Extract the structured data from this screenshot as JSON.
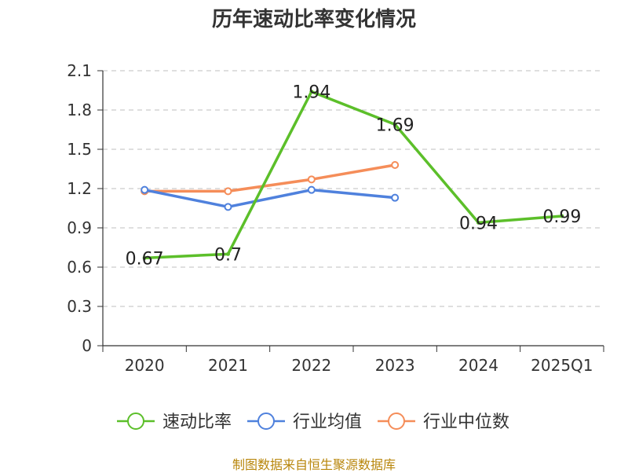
{
  "title": "历年速动比率变化情况",
  "source": "制图数据来自恒生聚源数据库",
  "chart_data": {
    "type": "line",
    "title": "历年速动比率变化情况",
    "categories": [
      "2020",
      "2021",
      "2022",
      "2023",
      "2024",
      "2025Q1"
    ],
    "ylim": [
      0,
      2.1
    ],
    "yticks": [
      0,
      0.3,
      0.6,
      0.9,
      1.2,
      1.5,
      1.8,
      2.1
    ],
    "ytick_labels": [
      "0",
      "0.3",
      "0.6",
      "0.9",
      "1.2",
      "1.5",
      "1.8",
      "2.1"
    ],
    "grid": true,
    "legend_position": "bottom",
    "series": [
      {
        "name": "速动比率",
        "color": "#5cbf2a",
        "values": [
          0.67,
          0.7,
          1.94,
          1.69,
          0.94,
          0.99
        ],
        "labels": [
          "0.67",
          "0.7",
          "1.94",
          "1.69",
          "0.94",
          "0.99"
        ],
        "show_labels": true
      },
      {
        "name": "行业均值",
        "color": "#4f81dd",
        "values": [
          1.19,
          1.06,
          1.19,
          1.13,
          null,
          null
        ],
        "show_labels": false
      },
      {
        "name": "行业中位数",
        "color": "#f58d59",
        "values": [
          1.18,
          1.18,
          1.27,
          1.38,
          null,
          null
        ],
        "show_labels": false
      }
    ]
  }
}
